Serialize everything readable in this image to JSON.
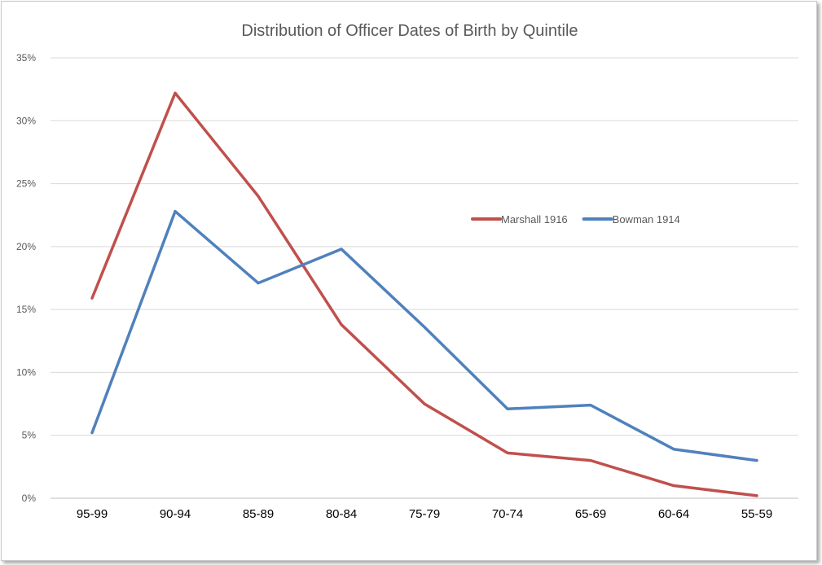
{
  "chart_data": {
    "type": "line",
    "title": "Distribution of Officer Dates of Birth by Quintile",
    "xlabel": "",
    "ylabel": "",
    "categories": [
      "95-99",
      "90-94",
      "85-89",
      "80-84",
      "75-79",
      "70-74",
      "65-69",
      "60-64",
      "55-59"
    ],
    "ylim": [
      0,
      35
    ],
    "yticks": [
      0,
      5,
      10,
      15,
      20,
      25,
      30,
      35
    ],
    "ytick_labels": [
      "0%",
      "5%",
      "10%",
      "15%",
      "20%",
      "25%",
      "30%",
      "35%"
    ],
    "grid": true,
    "legend_position": "right-middle",
    "series": [
      {
        "name": "Marshall 1916",
        "color": "#c0504d",
        "values": [
          15.9,
          32.2,
          24.0,
          13.8,
          7.5,
          3.6,
          3.0,
          1.0,
          0.2
        ]
      },
      {
        "name": "Bowman 1914",
        "color": "#4f81bd",
        "values": [
          5.2,
          22.8,
          17.1,
          19.8,
          13.6,
          7.1,
          7.4,
          3.9,
          3.0
        ]
      }
    ]
  }
}
